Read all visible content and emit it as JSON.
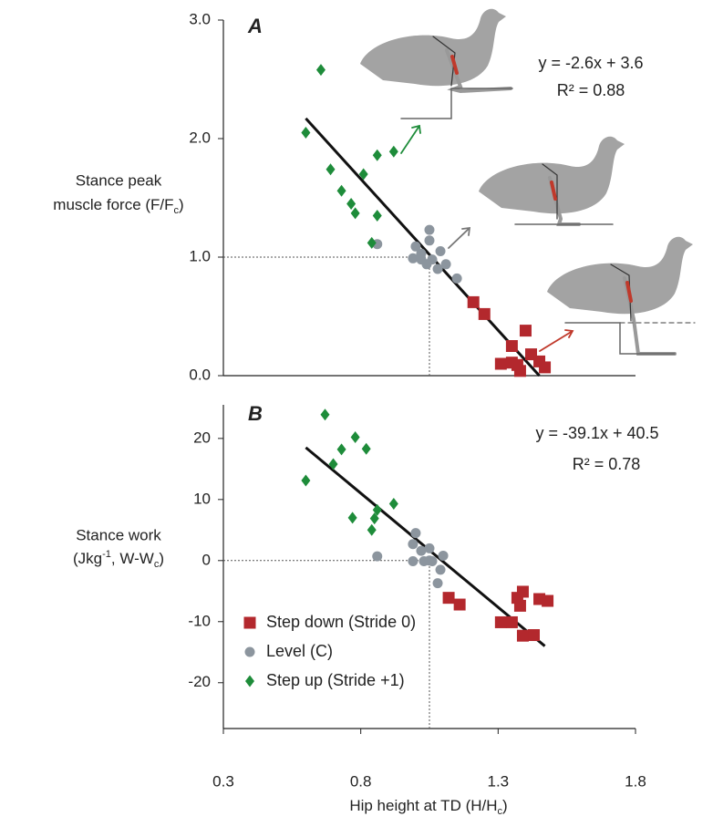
{
  "chart_data": [
    {
      "type": "scatter",
      "label": "A",
      "ylabel": {
        "line1": "Stance peak",
        "line2": "muscle force (F/F",
        "sub": "c",
        "end": ")"
      },
      "equation": "y = -2.6x + 3.6",
      "r2": "R² = 0.88",
      "xlim": [
        0.3,
        1.8
      ],
      "ylim": [
        0,
        3
      ],
      "yticks": [
        {
          "value": 0,
          "label": "0.0"
        },
        {
          "value": 1,
          "label": "1.0"
        },
        {
          "value": 2,
          "label": "2.0"
        },
        {
          "value": 3,
          "label": "3.0"
        }
      ],
      "ref_x": 1.05,
      "ref_y": 1,
      "fit": {
        "x": [
          0.6,
          1.45
        ],
        "y": [
          2.17,
          0
        ]
      },
      "series": [
        {
          "color": "#b3282d",
          "marker": "square",
          "x": [
            1.21,
            1.25,
            1.31,
            1.35,
            1.35,
            1.4,
            1.37,
            1.38,
            1.42,
            1.45,
            1.47
          ],
          "y": [
            0.62,
            0.52,
            0.1,
            0.11,
            0.25,
            0.38,
            0.09,
            0.04,
            0.18,
            0.12,
            0.07
          ]
        },
        {
          "color": "#8c959e",
          "marker": "circle",
          "x": [
            0.86,
            1.05,
            1.05,
            1.0,
            1.02,
            0.99,
            1.06,
            1.09,
            1.11,
            1.04,
            1.15,
            1.08,
            1.02
          ],
          "y": [
            1.11,
            1.23,
            1.14,
            1.09,
            1.03,
            0.99,
            0.98,
            1.05,
            0.94,
            0.94,
            0.82,
            0.9,
            0.98
          ]
        },
        {
          "color": "#1e8c3a",
          "marker": "diamond",
          "x": [
            0.655,
            0.6,
            0.69,
            0.73,
            0.765,
            0.78,
            0.81,
            0.86,
            0.92,
            0.86,
            0.84
          ],
          "y": [
            2.58,
            2.05,
            1.74,
            1.56,
            1.45,
            1.37,
            1.7,
            1.86,
            1.89,
            1.35,
            1.12
          ]
        }
      ]
    },
    {
      "type": "scatter",
      "label": "B",
      "ylabel": {
        "line1": "Stance work",
        "line2": "(Jkg",
        "sup": "-1",
        "mid": ", W-W",
        "sub": "c",
        "end": ")"
      },
      "xlabel": {
        "text": "Hip height at TD (H/H",
        "sub": "c",
        "end": ")"
      },
      "equation": "y = -39.1x + 40.5",
      "r2": "R² = 0.78",
      "xlim": [
        0.3,
        1.8
      ],
      "ylim": [
        -27.5,
        25.5
      ],
      "xticks": [
        0.3,
        0.8,
        1.3,
        1.8
      ],
      "yticks": [
        -20,
        -10,
        0,
        10,
        20
      ],
      "ref_x": 1.05,
      "ref_y": 0,
      "fit": {
        "x": [
          0.6,
          1.47
        ],
        "y": [
          18.5,
          -14
        ]
      },
      "legend": "lower left",
      "series": [
        {
          "name": "Step down (Stride 0)",
          "color": "#b3282d",
          "marker": "square",
          "x": [
            1.12,
            1.16,
            1.31,
            1.35,
            1.37,
            1.39,
            1.38,
            1.39,
            1.43,
            1.45,
            1.48
          ],
          "y": [
            -6.1,
            -7.2,
            -10.1,
            -10.1,
            -6.1,
            -5.1,
            -7.4,
            -12.3,
            -12.2,
            -6.3,
            -6.6
          ]
        },
        {
          "name": "Level (C)",
          "color": "#8c959e",
          "marker": "circle",
          "x": [
            0.86,
            1.0,
            0.99,
            1.02,
            1.05,
            0.99,
            1.03,
            1.06,
            1.05,
            1.09,
            1.08,
            1.1
          ],
          "y": [
            0.7,
            4.5,
            2.7,
            1.6,
            2.0,
            -0.1,
            -0.1,
            -0.1,
            0.0,
            -1.5,
            -3.7,
            0.8
          ]
        },
        {
          "name": "Step up (Stride +1)",
          "color": "#1e8c3a",
          "marker": "diamond",
          "x": [
            0.67,
            0.6,
            0.7,
            0.73,
            0.78,
            0.82,
            0.77,
            0.86,
            0.85,
            0.84,
            0.92
          ],
          "y": [
            23.9,
            13.1,
            15.8,
            18.2,
            20.2,
            18.3,
            7.0,
            8.3,
            6.9,
            5.0,
            9.3
          ]
        }
      ]
    }
  ]
}
